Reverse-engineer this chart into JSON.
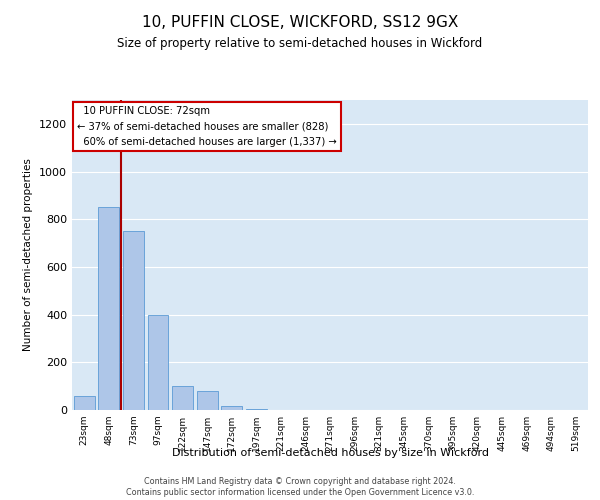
{
  "title": "10, PUFFIN CLOSE, WICKFORD, SS12 9GX",
  "subtitle": "Size of property relative to semi-detached houses in Wickford",
  "xlabel": "Distribution of semi-detached houses by size in Wickford",
  "ylabel": "Number of semi-detached properties",
  "property_label": "10 PUFFIN CLOSE: 72sqm",
  "pct_smaller": 37,
  "count_smaller": 828,
  "pct_larger": 60,
  "count_larger": 1337,
  "bin_labels": [
    "23sqm",
    "48sqm",
    "73sqm",
    "97sqm",
    "122sqm",
    "147sqm",
    "172sqm",
    "197sqm",
    "221sqm",
    "246sqm",
    "271sqm",
    "296sqm",
    "321sqm",
    "345sqm",
    "370sqm",
    "395sqm",
    "420sqm",
    "445sqm",
    "469sqm",
    "494sqm",
    "519sqm"
  ],
  "bar_values": [
    60,
    850,
    750,
    400,
    100,
    80,
    15,
    5,
    2,
    1,
    1,
    0,
    0,
    0,
    0,
    0,
    0,
    0,
    0,
    0,
    0
  ],
  "bar_color": "#aec6e8",
  "bar_edge_color": "#5b9bd5",
  "vline_position": 1.5,
  "vline_color": "#aa0000",
  "annotation_box_color": "#cc0000",
  "ylim": [
    0,
    1300
  ],
  "yticks": [
    0,
    200,
    400,
    600,
    800,
    1000,
    1200
  ],
  "background_color": "#d9e8f5",
  "footer_line1": "Contains HM Land Registry data © Crown copyright and database right 2024.",
  "footer_line2": "Contains public sector information licensed under the Open Government Licence v3.0."
}
